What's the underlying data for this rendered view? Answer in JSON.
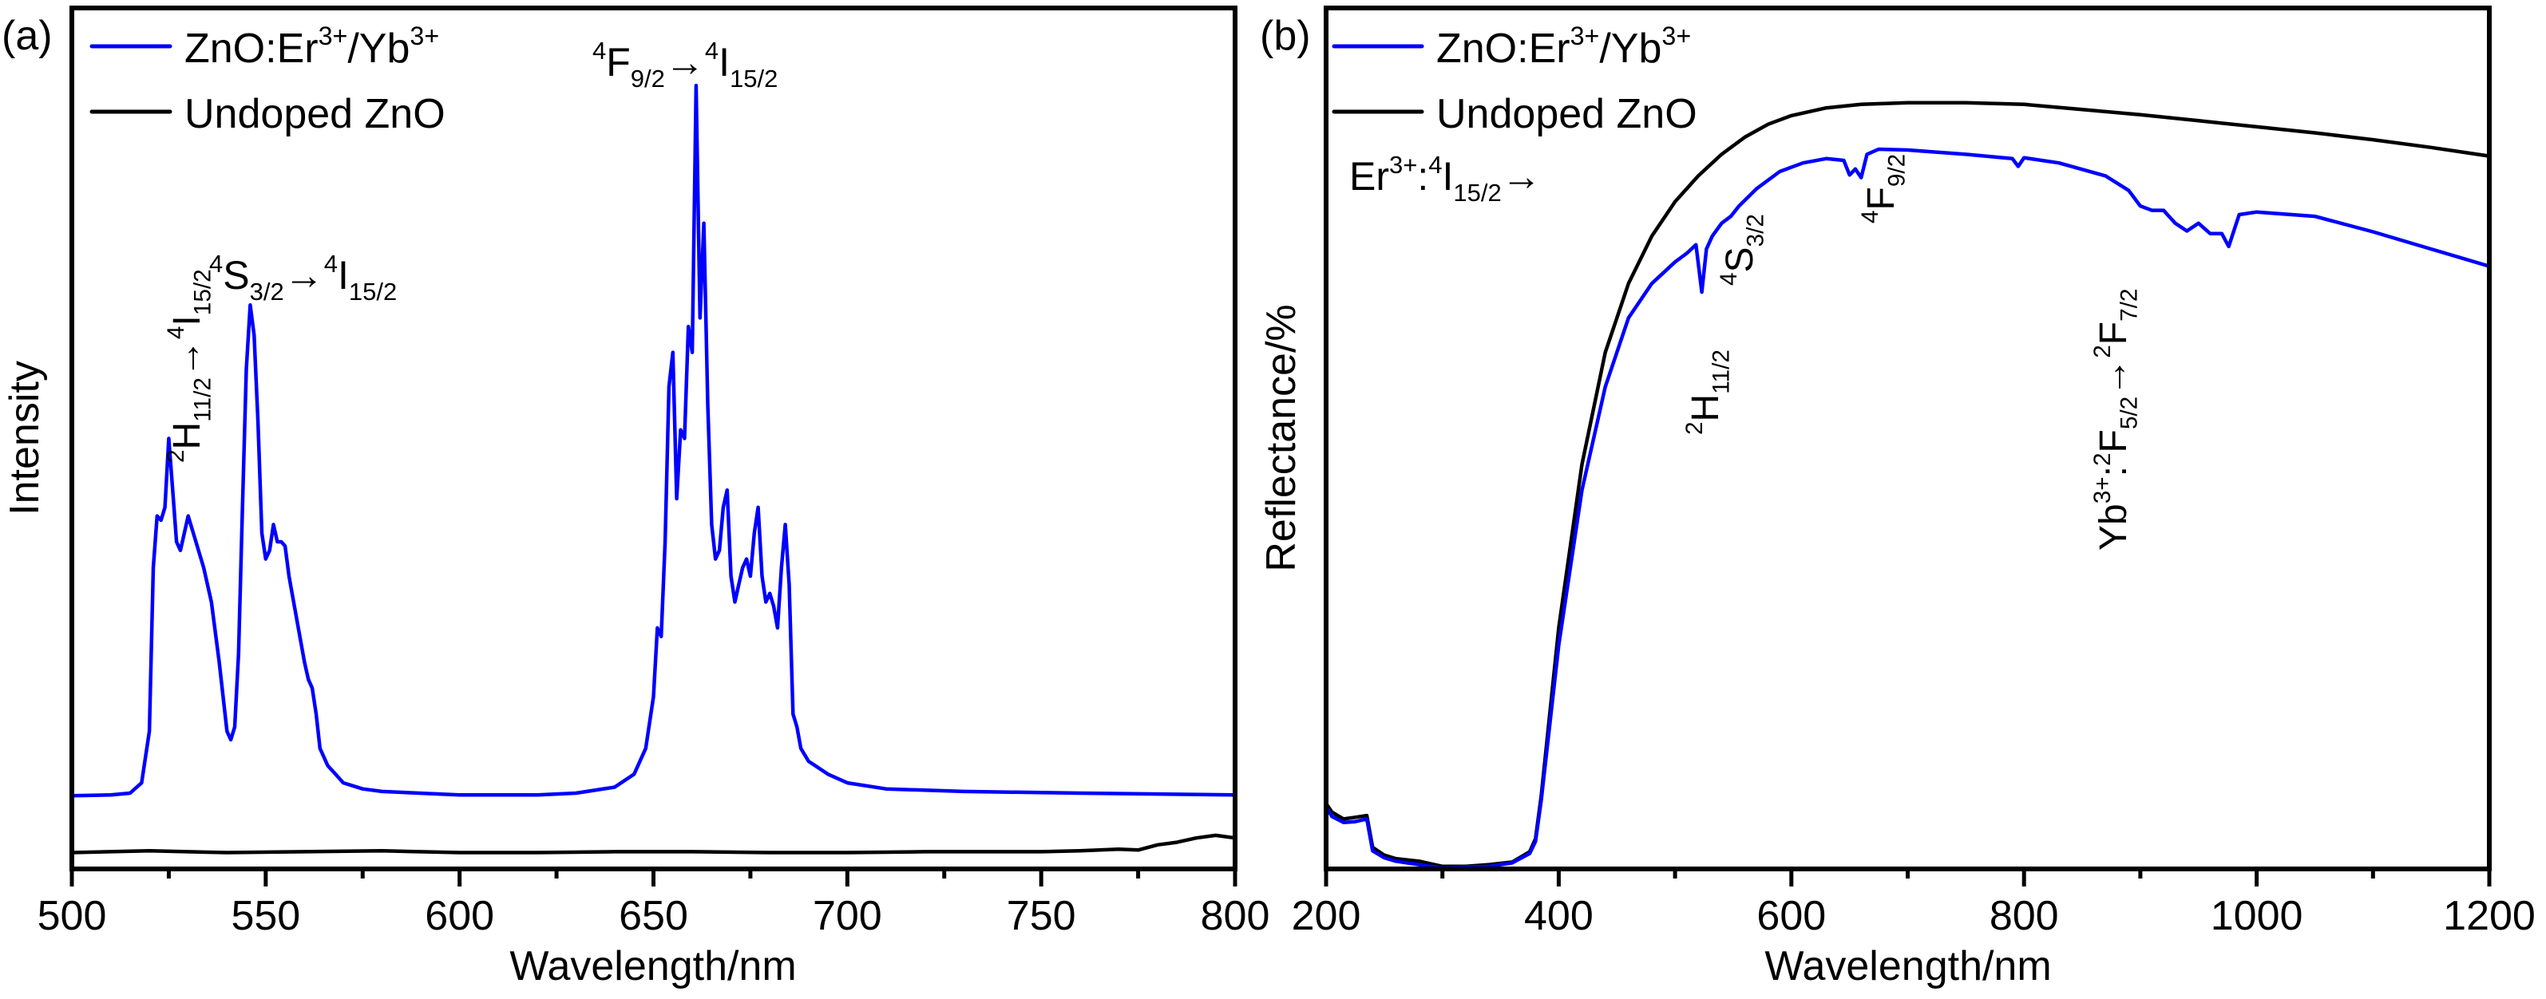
{
  "chart_data": [
    {
      "panel_label": "(a)",
      "type": "line",
      "title": "",
      "xlabel": "Wavelength/nm",
      "ylabel": "Intensity",
      "xlim": [
        500,
        800
      ],
      "ylim": [
        0,
        100
      ],
      "x_ticks": [
        500,
        550,
        600,
        650,
        700,
        750,
        800
      ],
      "x_tick_labels": [
        "500",
        "550",
        "600",
        "650",
        "700",
        "750",
        "800"
      ],
      "x_minor_step": 25,
      "y_ticks_visible": false,
      "grid": false,
      "legend_position": "top-left",
      "series": [
        {
          "name": "ZnO:Er3+/Yb3+",
          "legend_label": {
            "base": "ZnO:Er",
            "sup1": "3+",
            "mid": "/Yb",
            "sup2": "3+"
          },
          "color": "#0000ff",
          "x": [
            500,
            510,
            515,
            518,
            520,
            521,
            522,
            523,
            524,
            525,
            526,
            527,
            528,
            530,
            532,
            534,
            536,
            538,
            540,
            541,
            542,
            543,
            544,
            545,
            546,
            547,
            548,
            549,
            550,
            551,
            552,
            553,
            554,
            555,
            556,
            558,
            560,
            561,
            562,
            563,
            564,
            566,
            568,
            570,
            575,
            580,
            600,
            620,
            630,
            640,
            645,
            648,
            650,
            651,
            652,
            653,
            654,
            655,
            656,
            657,
            658,
            659,
            660,
            661,
            662,
            663,
            664,
            665,
            666,
            667,
            668,
            669,
            670,
            671,
            672,
            673,
            674,
            675,
            676,
            677,
            678,
            679,
            680,
            681,
            682,
            683,
            684,
            685,
            686,
            687,
            688,
            690,
            695,
            700,
            710,
            730,
            760,
            800
          ],
          "y": [
            8.5,
            8.6,
            8.8,
            10,
            16,
            35,
            41,
            40.5,
            42,
            50,
            44,
            38,
            37,
            41,
            38,
            35,
            31,
            24,
            16,
            15,
            16.5,
            25,
            42,
            58,
            65.5,
            62,
            52,
            39,
            36,
            37,
            40,
            38,
            38,
            37.5,
            34,
            29,
            24,
            22,
            21,
            18,
            14,
            12,
            11,
            10,
            9.3,
            9,
            8.6,
            8.6,
            8.8,
            9.5,
            11,
            14,
            20,
            28,
            27,
            38,
            56,
            60,
            43,
            51,
            50,
            63,
            60,
            91,
            64,
            75,
            54,
            40,
            36,
            37,
            42,
            44,
            34,
            31,
            33,
            35,
            36,
            34,
            39,
            42,
            34,
            31,
            32,
            30.5,
            28,
            35,
            40,
            33,
            18,
            16.5,
            14,
            12.5,
            11,
            10,
            9.3,
            9,
            8.8,
            8.6
          ]
        },
        {
          "name": "Undoped ZnO",
          "color": "#000000",
          "x": [
            500,
            520,
            540,
            560,
            580,
            600,
            620,
            640,
            660,
            680,
            700,
            720,
            740,
            750,
            760,
            770,
            775,
            780,
            785,
            790,
            795,
            800
          ],
          "y": [
            1.9,
            2.1,
            1.9,
            2.0,
            2.1,
            1.9,
            1.9,
            2.0,
            2.0,
            1.9,
            1.9,
            2.0,
            2.0,
            2.0,
            2.1,
            2.3,
            2.2,
            2.8,
            3.1,
            3.6,
            3.9,
            3.6
          ]
        }
      ],
      "annotations": [
        {
          "id": "h11",
          "parts": [
            {
              "sup": "2"
            },
            {
              "t": "H"
            },
            {
              "sub": "11/2"
            },
            {
              "t": "→"
            },
            {
              "sup": "4"
            },
            {
              "t": "I"
            },
            {
              "sub": "15/2"
            }
          ],
          "rotated": true,
          "x_nm": 525
        },
        {
          "id": "s32",
          "parts": [
            {
              "sup": "4"
            },
            {
              "t": "S"
            },
            {
              "sub": "3/2"
            },
            {
              "t": "→"
            },
            {
              "sup": "4"
            },
            {
              "t": "I"
            },
            {
              "sub": "15/2"
            }
          ],
          "rotated": false,
          "x_nm": 546
        },
        {
          "id": "f92",
          "parts": [
            {
              "sup": "4"
            },
            {
              "t": "F"
            },
            {
              "sub": "9/2"
            },
            {
              "t": "→"
            },
            {
              "sup": "4"
            },
            {
              "t": "I"
            },
            {
              "sub": "15/2"
            }
          ],
          "rotated": false,
          "x_nm": 662
        }
      ]
    },
    {
      "panel_label": "(b)",
      "type": "line",
      "title": "",
      "xlabel": "Wavelength/nm",
      "ylabel": "Reflectance/%",
      "xlim": [
        200,
        1200
      ],
      "ylim": [
        0,
        100
      ],
      "x_ticks": [
        200,
        400,
        600,
        800,
        1000,
        1200
      ],
      "x_tick_labels": [
        "200",
        "400",
        "600",
        "800",
        "1000",
        "1200"
      ],
      "x_minor_step": 100,
      "y_ticks_visible": false,
      "grid": false,
      "legend_position": "top-left",
      "series": [
        {
          "name": "ZnO:Er3+/Yb3+",
          "legend_label": {
            "base": "ZnO:Er",
            "sup1": "3+",
            "mid": "/Yb",
            "sup2": "3+"
          },
          "color": "#0000ff",
          "x": [
            200,
            205,
            215,
            225,
            235,
            240,
            250,
            260,
            280,
            300,
            320,
            340,
            360,
            375,
            380,
            385,
            390,
            400,
            420,
            440,
            460,
            480,
            500,
            510,
            518,
            523,
            527,
            532,
            540,
            548,
            555,
            570,
            590,
            610,
            630,
            645,
            650,
            655,
            660,
            665,
            675,
            700,
            750,
            790,
            795,
            800,
            830,
            870,
            890,
            900,
            910,
            920,
            930,
            940,
            950,
            960,
            970,
            976,
            985,
            1000,
            1050,
            1100,
            1150,
            1200
          ],
          "y": [
            7.2,
            6.1,
            5.4,
            5.5,
            5.8,
            2.1,
            1.3,
            0.9,
            0.5,
            0.1,
            0.2,
            0.3,
            0.7,
            1.8,
            3.2,
            8,
            14,
            26,
            44,
            56,
            64,
            68,
            70.5,
            71.5,
            72.5,
            67,
            72,
            73.5,
            75,
            75.8,
            77,
            79,
            81,
            82,
            82.5,
            82.3,
            80.6,
            81.3,
            80.3,
            83,
            83.6,
            83.5,
            83,
            82.5,
            81.6,
            82.6,
            82,
            80.5,
            78.8,
            77,
            76.5,
            76.5,
            75,
            74.1,
            75,
            73.8,
            73.8,
            72.3,
            76,
            76.3,
            75.8,
            74,
            72,
            70
          ]
        },
        {
          "name": "Undoped ZnO",
          "color": "#000000",
          "x": [
            200,
            205,
            215,
            225,
            235,
            240,
            250,
            260,
            280,
            300,
            320,
            340,
            360,
            375,
            380,
            385,
            390,
            400,
            420,
            440,
            460,
            480,
            500,
            520,
            540,
            560,
            580,
            600,
            630,
            660,
            700,
            750,
            800,
            850,
            900,
            950,
            1000,
            1050,
            1100,
            1150,
            1200
          ],
          "y": [
            7.6,
            6.6,
            5.8,
            6.0,
            6.2,
            2.5,
            1.6,
            1.2,
            0.9,
            0.3,
            0.3,
            0.5,
            0.8,
            2.0,
            3.5,
            8.5,
            15,
            28,
            47,
            60,
            68,
            73.5,
            77.5,
            80.5,
            83,
            85,
            86.5,
            87.5,
            88.4,
            88.8,
            89,
            89,
            88.8,
            88.2,
            87.6,
            86.9,
            86.2,
            85.5,
            84.7,
            83.8,
            82.8
          ]
        }
      ],
      "annotations": [
        {
          "id": "er-prefix",
          "parts": [
            {
              "t": "Er"
            },
            {
              "sup": "3+"
            },
            {
              "t": ":"
            },
            {
              "sup": "4"
            },
            {
              "t": "I"
            },
            {
              "sub": "15/2"
            },
            {
              "t": "→"
            }
          ],
          "rotated": false
        },
        {
          "id": "h112",
          "parts": [
            {
              "sup": "2"
            },
            {
              "t": "H"
            },
            {
              "sub": "11/2"
            }
          ],
          "rotated": true,
          "x_nm": 523
        },
        {
          "id": "s32",
          "parts": [
            {
              "sup": "4"
            },
            {
              "t": "S"
            },
            {
              "sub": "3/2"
            }
          ],
          "rotated": true,
          "x_nm": 545
        },
        {
          "id": "f92",
          "parts": [
            {
              "sup": "4"
            },
            {
              "t": "F"
            },
            {
              "sub": "9/2"
            }
          ],
          "rotated": true,
          "x_nm": 652
        },
        {
          "id": "yb",
          "parts": [
            {
              "t": "Yb"
            },
            {
              "sup": "3+"
            },
            {
              "t": ":"
            },
            {
              "sup": "2"
            },
            {
              "t": "F"
            },
            {
              "sub": "5/2"
            },
            {
              "t": "→"
            },
            {
              "sup": "2"
            },
            {
              "t": "F"
            },
            {
              "sub": "7/2"
            }
          ],
          "rotated": true,
          "x_nm": 976
        }
      ]
    }
  ]
}
